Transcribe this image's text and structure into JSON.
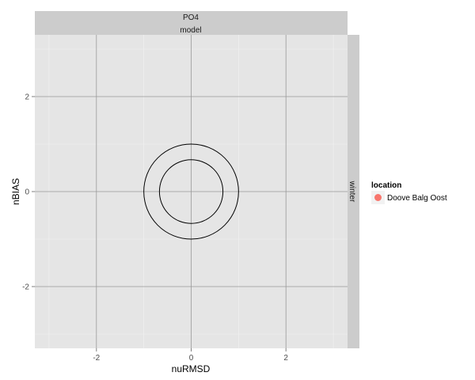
{
  "chart_data": {
    "type": "scatter",
    "facet": {
      "top_strips": [
        "PO4",
        "model"
      ],
      "right_strip": "winter"
    },
    "xlabel": "nuRMSD",
    "ylabel": "nBIAS",
    "xlim": [
      -3.3,
      3.3
    ],
    "ylim": [
      -3.3,
      3.3
    ],
    "x_ticks": [
      -2,
      0,
      2
    ],
    "y_ticks": [
      -2,
      0,
      2
    ],
    "x_tick_labels": [
      "-2",
      "0",
      "2"
    ],
    "y_tick_labels": [
      "-2",
      "0",
      "2"
    ],
    "reference_circles": [
      {
        "radius": 1.0
      },
      {
        "radius": 0.67
      }
    ],
    "legend": {
      "title": "location",
      "placement": "right",
      "entries": [
        {
          "label": "Doove Balg Oost",
          "color": "#F8766D"
        }
      ]
    },
    "series": [
      {
        "name": "Doove Balg Oost",
        "color": "#F8766D",
        "points": []
      }
    ],
    "grid": true,
    "colors": {
      "panel_bg": "#e5e5e5",
      "strip_bg": "#cccccc",
      "grid_major": "#999999",
      "grid_minor": "#f2f2f2"
    }
  }
}
